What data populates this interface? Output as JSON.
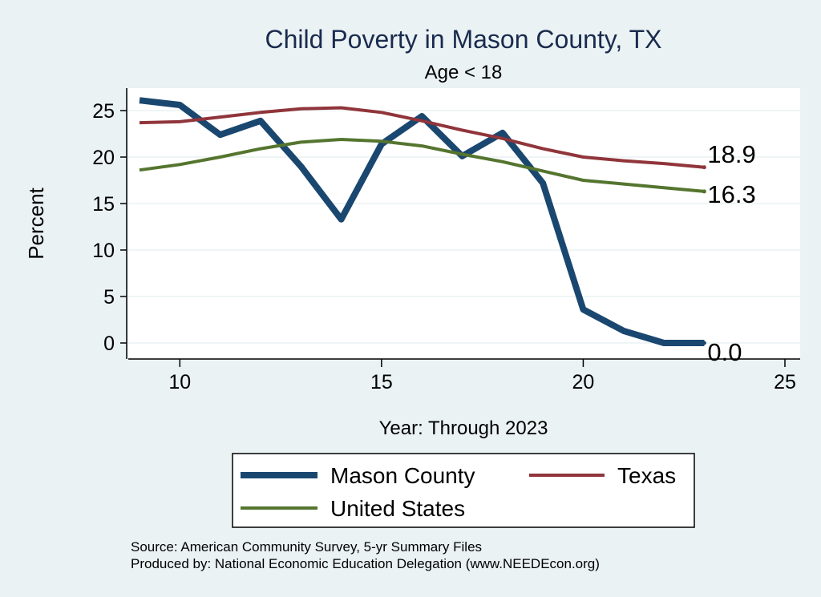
{
  "chart_data": {
    "type": "line",
    "title": "Child Poverty in Mason County, TX",
    "subtitle": "Age < 18",
    "xlabel": "Year: Through 2023",
    "ylabel": "Percent",
    "xlim": [
      9,
      25
    ],
    "ylim": [
      0,
      27
    ],
    "xticks": [
      10,
      15,
      20,
      25
    ],
    "yticks": [
      0,
      5,
      10,
      15,
      20,
      25
    ],
    "grid": true,
    "legend_position": "bottom",
    "series": [
      {
        "name": "Mason County",
        "color": "#1a476f",
        "x": [
          9,
          10,
          11,
          12,
          13,
          14,
          15,
          16,
          17,
          18,
          19,
          20,
          21,
          22,
          23
        ],
        "values": [
          26.1,
          25.6,
          22.4,
          23.9,
          19.0,
          13.3,
          21.4,
          24.4,
          20.1,
          22.6,
          17.2,
          3.6,
          1.3,
          0.0,
          0.0
        ],
        "end_label": "0.0"
      },
      {
        "name": "Texas",
        "color": "#90353b",
        "x": [
          9,
          10,
          11,
          12,
          13,
          14,
          15,
          16,
          17,
          18,
          19,
          20,
          21,
          22,
          23
        ],
        "values": [
          23.7,
          23.8,
          24.3,
          24.8,
          25.2,
          25.3,
          24.8,
          23.9,
          22.9,
          22.0,
          20.9,
          20.0,
          19.6,
          19.3,
          18.9
        ],
        "end_label": "18.9"
      },
      {
        "name": "United States",
        "color": "#55752f",
        "x": [
          9,
          10,
          11,
          12,
          13,
          14,
          15,
          16,
          17,
          18,
          19,
          20,
          21,
          22,
          23
        ],
        "values": [
          18.6,
          19.2,
          20.0,
          20.9,
          21.6,
          21.9,
          21.7,
          21.2,
          20.3,
          19.5,
          18.5,
          17.5,
          17.1,
          16.7,
          16.3
        ],
        "end_label": "16.3"
      }
    ]
  },
  "footer": {
    "source": "Source: American Community Survey, 5-yr Summary Files",
    "produced_by": "Produced by: National Economic Education Delegation (www.NEEDEcon.org)"
  }
}
